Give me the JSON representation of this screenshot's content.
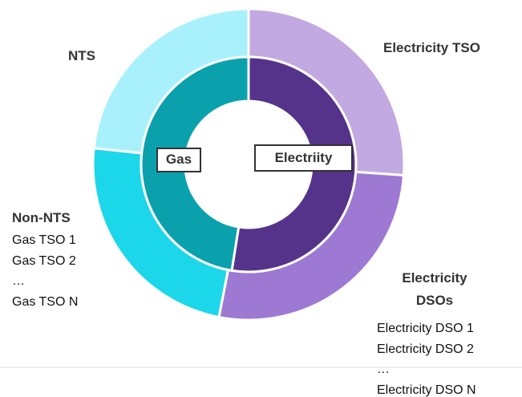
{
  "rings": {
    "outer": [
      {
        "label": "Electricity TSO"
      },
      {
        "label": "Electricity DSOs",
        "items": [
          "Electricity DSO 1",
          "Electricity DSO 2",
          "…",
          "Electricity DSO N"
        ]
      },
      {
        "label": "Non-NTS",
        "items": [
          "Gas TSO 1",
          "Gas TSO 2",
          "…",
          "Gas TSO N"
        ]
      },
      {
        "label": "NTS"
      }
    ],
    "inner": [
      {
        "label": "Electriity"
      },
      {
        "label": "Gas"
      }
    ]
  }
}
